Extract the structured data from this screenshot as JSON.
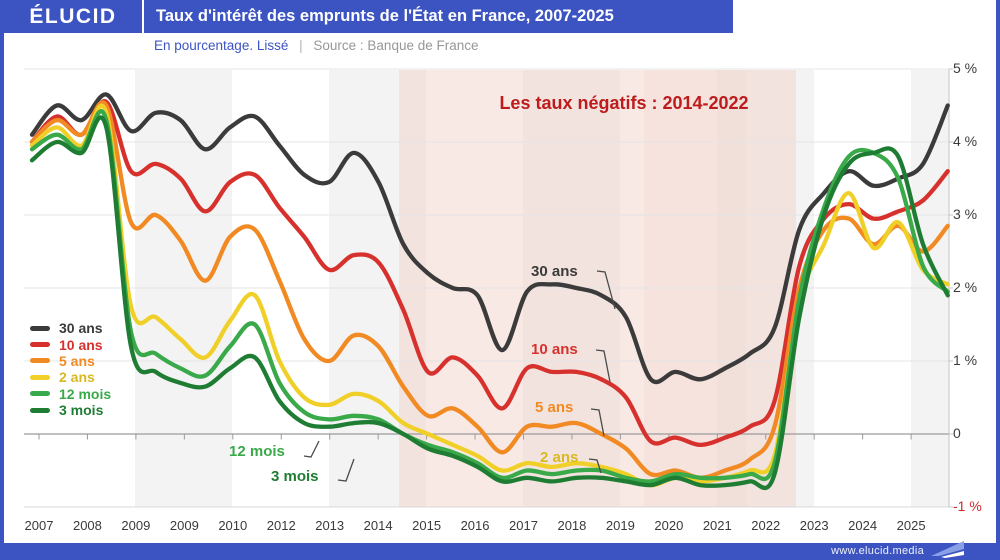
{
  "header": {
    "logo": "ÉLUCID",
    "title": "Taux d'intérêt des emprunts de l'État en France, 2007-2025"
  },
  "subheader": {
    "unit": "En pourcentage. Lissé",
    "separator": "|",
    "source": "Source : Banque de France"
  },
  "footer": {
    "url": "www.elucid.media"
  },
  "colors": {
    "accent_blue": "#3c54c2",
    "annotation_red": "#be1c1c",
    "negative_zone_pink": "#f8e9e7",
    "stripe_gray": "#f3f3f3",
    "axis_text": "#3a3a3a",
    "negative_tick_red": "#cc2b2b"
  },
  "chart_data": {
    "type": "line",
    "title": "Taux d'intérêt des emprunts de l'État en France, 2007-2025",
    "unit_note": "En pourcentage. Lissé",
    "source": "Source : Banque de France",
    "annotation": "Les taux négatifs : 2014-2022",
    "grid": "horizontal",
    "legend_position": "left-middle",
    "ylim": [
      -1,
      5
    ],
    "xlim": [
      2007,
      2025.5
    ],
    "negative_band": {
      "from": 2014,
      "to": 2022
    },
    "x_tick_labels": [
      "2007",
      "2008",
      "2009",
      "2009",
      "2010",
      "2012",
      "2013",
      "2014",
      "2015",
      "2016",
      "2017",
      "2018",
      "2019",
      "2020",
      "2021",
      "2022",
      "2023",
      "2024",
      "2025"
    ],
    "y_tick_labels": [
      "5 %",
      "4 %",
      "3 %",
      "2 %",
      "1 %",
      "0",
      "-1 %"
    ],
    "x": [
      2007,
      2007.5,
      2008,
      2008.5,
      2009,
      2009.5,
      2010,
      2010.5,
      2011,
      2011.5,
      2012,
      2012.5,
      2013,
      2013.5,
      2014,
      2014.5,
      2015,
      2015.5,
      2016,
      2016.5,
      2017,
      2017.5,
      2018,
      2018.5,
      2019,
      2019.5,
      2020,
      2020.5,
      2021,
      2021.5,
      2022,
      2022.5,
      2023,
      2023.5,
      2024,
      2024.5,
      2025,
      2025.5
    ],
    "series": [
      {
        "name": "30 ans",
        "color": "#3b3b3b",
        "label_color": "#3b3b3b",
        "values": [
          4.1,
          4.5,
          4.3,
          4.65,
          4.15,
          4.4,
          4.3,
          3.9,
          4.2,
          4.35,
          3.95,
          3.55,
          3.45,
          3.85,
          3.45,
          2.6,
          2.2,
          2.0,
          1.9,
          1.15,
          1.95,
          2.05,
          2.0,
          1.9,
          1.6,
          0.75,
          0.85,
          0.75,
          0.9,
          1.1,
          1.45,
          2.8,
          3.3,
          3.6,
          3.4,
          3.5,
          3.7,
          4.5
        ]
      },
      {
        "name": "10 ans",
        "color": "#d7312e",
        "label_color": "#d7312e",
        "values": [
          4.0,
          4.35,
          4.1,
          4.55,
          3.6,
          3.7,
          3.5,
          3.05,
          3.45,
          3.55,
          3.1,
          2.7,
          2.25,
          2.45,
          2.35,
          1.7,
          0.85,
          1.05,
          0.8,
          0.35,
          0.9,
          0.85,
          0.85,
          0.75,
          0.5,
          -0.1,
          -0.05,
          -0.15,
          -0.05,
          0.1,
          0.45,
          2.3,
          2.95,
          3.15,
          2.95,
          3.05,
          3.2,
          3.6
        ]
      },
      {
        "name": "5 ans",
        "color": "#f18a22",
        "label_color": "#f18a22",
        "values": [
          4.0,
          4.3,
          4.1,
          4.5,
          2.9,
          3.0,
          2.65,
          2.1,
          2.7,
          2.8,
          2.1,
          1.3,
          1.0,
          1.35,
          1.2,
          0.65,
          0.25,
          0.35,
          0.1,
          -0.25,
          0.1,
          0.1,
          0.15,
          0.0,
          -0.2,
          -0.55,
          -0.5,
          -0.6,
          -0.5,
          -0.35,
          0.1,
          2.0,
          2.8,
          2.95,
          2.6,
          2.85,
          2.5,
          2.85
        ]
      },
      {
        "name": "2 ans",
        "color": "#f0d028",
        "label_color": "#d9b922",
        "values": [
          3.95,
          4.2,
          3.95,
          4.4,
          1.75,
          1.6,
          1.3,
          1.05,
          1.55,
          1.9,
          1.0,
          0.5,
          0.4,
          0.55,
          0.45,
          0.15,
          0.0,
          -0.15,
          -0.3,
          -0.5,
          -0.4,
          -0.45,
          -0.4,
          -0.45,
          -0.55,
          -0.7,
          -0.6,
          -0.65,
          -0.6,
          -0.5,
          -0.3,
          1.8,
          2.6,
          3.3,
          2.55,
          2.9,
          2.25,
          2.05
        ]
      },
      {
        "name": "12 mois",
        "color": "#39a94a",
        "label_color": "#39a94a",
        "values": [
          3.9,
          4.1,
          3.9,
          4.3,
          1.4,
          1.1,
          0.9,
          0.8,
          1.2,
          1.5,
          0.7,
          0.3,
          0.2,
          0.25,
          0.2,
          0.0,
          -0.15,
          -0.25,
          -0.4,
          -0.6,
          -0.5,
          -0.55,
          -0.5,
          -0.5,
          -0.6,
          -0.65,
          -0.55,
          -0.6,
          -0.6,
          -0.55,
          -0.4,
          1.85,
          3.1,
          3.8,
          3.85,
          3.5,
          2.3,
          1.95
        ]
      },
      {
        "name": "3 mois",
        "color": "#1f7d33",
        "label_color": "#1f7d33",
        "values": [
          3.75,
          4.0,
          3.85,
          4.2,
          1.2,
          0.85,
          0.7,
          0.65,
          0.9,
          1.05,
          0.45,
          0.15,
          0.1,
          0.15,
          0.15,
          0.0,
          -0.2,
          -0.3,
          -0.45,
          -0.65,
          -0.6,
          -0.65,
          -0.6,
          -0.6,
          -0.65,
          -0.7,
          -0.6,
          -0.7,
          -0.7,
          -0.65,
          -0.55,
          1.6,
          3.0,
          3.7,
          3.85,
          3.8,
          2.6,
          1.9
        ]
      }
    ]
  }
}
